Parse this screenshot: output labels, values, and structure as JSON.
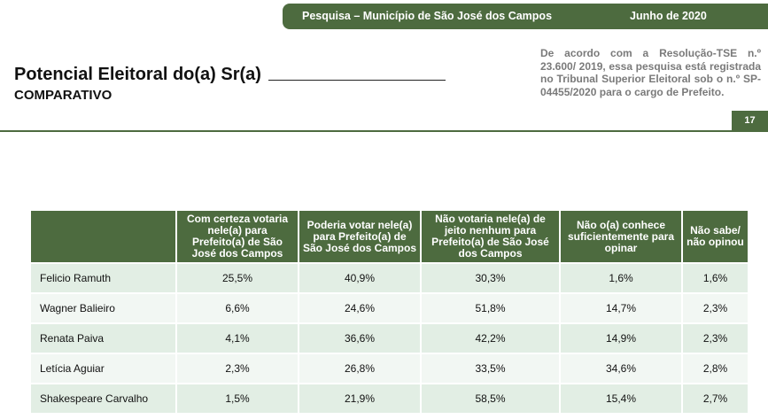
{
  "header": {
    "survey_label": "Pesquisa – Município de São José dos Campos",
    "date": "Junho de 2020"
  },
  "title": "Potencial Eleitoral do(a) Sr(a)",
  "subtitle": "COMPARATIVO",
  "legal_note": "De acordo com a Resolução-TSE n.º 23.600/ 2019, essa pesquisa está registrada no Tribunal Superior Eleitoral sob o n.º SP-04455/2020 para o cargo de Prefeito.",
  "page_number": "17",
  "table": {
    "columns": [
      "",
      "Com certeza votaria nele(a) para Prefeito(a) de São José dos Campos",
      "Poderia votar nele(a) para Prefeito(a) de São José dos Campos",
      "Não votaria nele(a) de jeito nenhum para Prefeito(a) de São José dos Campos",
      "Não o(a) conhece suficientemente para opinar",
      "Não sabe/ não opinou"
    ],
    "rows": [
      {
        "name": "Felicio Ramuth",
        "values": [
          "25,5%",
          "40,9%",
          "30,3%",
          "1,6%",
          "1,6%"
        ]
      },
      {
        "name": "Wagner Balieiro",
        "values": [
          "6,6%",
          "24,6%",
          "51,8%",
          "14,7%",
          "2,3%"
        ]
      },
      {
        "name": "Renata Paiva",
        "values": [
          "4,1%",
          "36,6%",
          "42,2%",
          "14,9%",
          "2,3%"
        ]
      },
      {
        "name": "Letícia Aguiar",
        "values": [
          "2,3%",
          "26,8%",
          "33,5%",
          "34,6%",
          "2,8%"
        ]
      },
      {
        "name": "Shakespeare Carvalho",
        "values": [
          "1,5%",
          "21,9%",
          "58,5%",
          "15,4%",
          "2,7%"
        ]
      }
    ]
  },
  "colors": {
    "brand_green": "#4d6b3f",
    "row_light": "#f2f7f3",
    "row_dark": "#e2eee4"
  }
}
